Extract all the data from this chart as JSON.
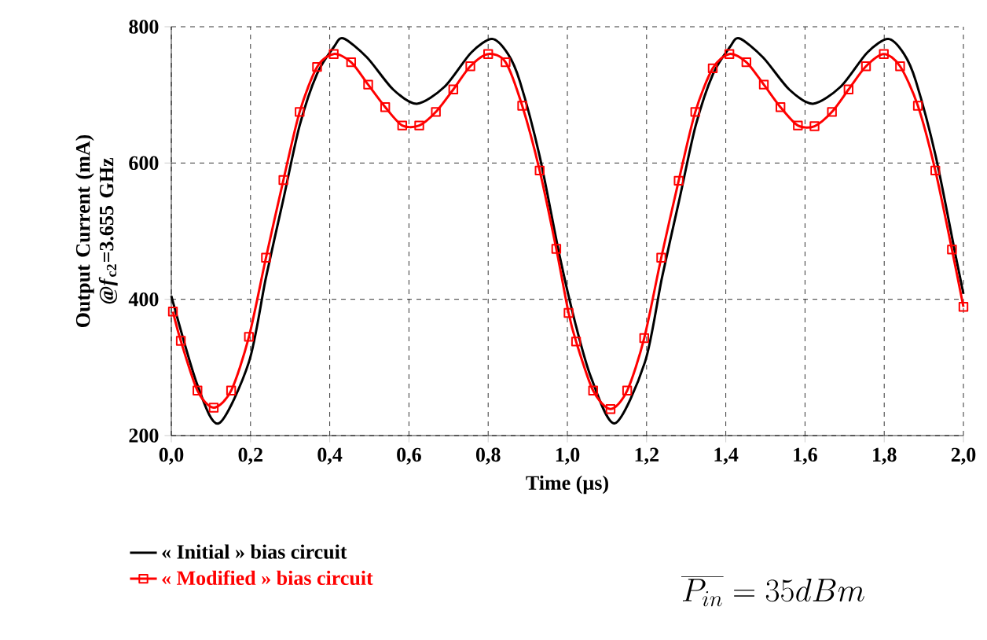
{
  "chart_data": {
    "type": "line",
    "xlabel": "Time (µs)",
    "ylabel": "Output Current (mA) @*f*$_{c2}$=3.655 GHz",
    "xlim": [
      0,
      2
    ],
    "ylim": [
      200,
      800
    ],
    "xticks": [
      {
        "value": 0,
        "label": "0,0"
      },
      {
        "value": 0.2,
        "label": "0,2"
      },
      {
        "value": 0.4,
        "label": "0,4"
      },
      {
        "value": 0.6,
        "label": "0,6"
      },
      {
        "value": 0.8,
        "label": "0,8"
      },
      {
        "value": 1.0,
        "label": "1,0"
      },
      {
        "value": 1.2,
        "label": "1,2"
      },
      {
        "value": 1.4,
        "label": "1,4"
      },
      {
        "value": 1.6,
        "label": "1,6"
      },
      {
        "value": 1.8,
        "label": "1,8"
      },
      {
        "value": 2.0,
        "label": "2,0"
      }
    ],
    "yticks": [
      200,
      400,
      600,
      800
    ],
    "grid": true,
    "legend": "bottom left",
    "annotations": [
      "\\overline{P_{in}} = 35dBm"
    ],
    "series": [
      {
        "name": "« **Initial** » bias circuit",
        "color": "#000000",
        "marker": "none",
        "x": [
          0,
          0.066,
          0.12,
          0.196,
          0.239,
          0.283,
          0.324,
          0.368,
          0.41,
          0.434,
          0.494,
          0.56,
          0.62,
          0.69,
          0.757,
          0.81,
          0.85,
          0.88,
          0.93,
          0.98,
          1.02,
          1.06,
          1.12,
          1.196,
          1.239,
          1.283,
          1.324,
          1.368,
          1.41,
          1.434,
          1.494,
          1.56,
          1.62,
          1.69,
          1.757,
          1.81,
          1.85,
          1.88,
          1.93,
          1.98,
          2.0
        ],
        "values": [
          405,
          274,
          218,
          308,
          432,
          547,
          655,
          731,
          770,
          783,
          755,
          708,
          687,
          712,
          762,
          782,
          760,
          720,
          610,
          465,
          365,
          285,
          218,
          308,
          432,
          547,
          655,
          731,
          770,
          783,
          755,
          708,
          687,
          712,
          762,
          782,
          760,
          720,
          610,
          465,
          408
        ]
      },
      {
        "name": "« **Modified** » bias circuit",
        "color": "#ff0000",
        "marker": "square",
        "x": [
          0.004,
          0.024,
          0.066,
          0.107,
          0.151,
          0.196,
          0.239,
          0.283,
          0.324,
          0.368,
          0.41,
          0.454,
          0.497,
          0.54,
          0.583,
          0.626,
          0.668,
          0.712,
          0.755,
          0.8,
          0.844,
          0.886,
          0.93,
          0.972,
          1.003,
          1.022,
          1.065,
          1.109,
          1.151,
          1.194,
          1.237,
          1.281,
          1.323,
          1.367,
          1.409,
          1.452,
          1.496,
          1.538,
          1.582,
          1.624,
          1.668,
          1.71,
          1.754,
          1.799,
          1.84,
          1.885,
          1.929,
          1.971,
          2.0
        ],
        "values": [
          382,
          339,
          266,
          241,
          266,
          345,
          461,
          575,
          675,
          741,
          760,
          748,
          715,
          682,
          655,
          655,
          675,
          708,
          742,
          760,
          748,
          684,
          589,
          474,
          380,
          338,
          266,
          239,
          266,
          343,
          461,
          574,
          675,
          739,
          760,
          748,
          715,
          682,
          655,
          654,
          675,
          708,
          742,
          760,
          742,
          684,
          589,
          473,
          389
        ]
      }
    ]
  }
}
